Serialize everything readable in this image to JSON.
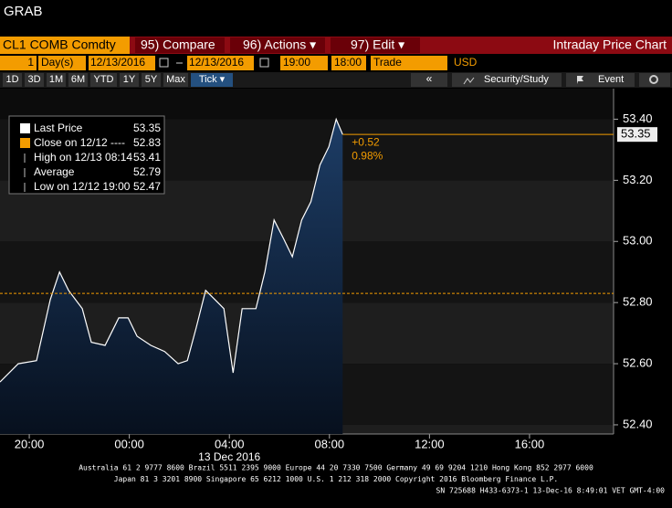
{
  "header": {
    "title": "GRAB"
  },
  "toolbar": {
    "security": "CL1 COMB Comdty",
    "compare": "95) Compare",
    "actions": "96) Actions ▾",
    "edit": "97) Edit ▾",
    "view": "Intraday Price Chart"
  },
  "range": {
    "count": "1",
    "unit": "Day(s)",
    "start_date": "12/13/2016",
    "end_date": "12/13/2016",
    "start_time": "19:00",
    "end_time": "18:00",
    "field": "Trade",
    "currency": "USD"
  },
  "periods": [
    "1D",
    "3D",
    "1M",
    "6M",
    "YTD",
    "1Y",
    "5Y",
    "Max",
    "Tick ▾"
  ],
  "tools": {
    "back": "«",
    "study": "Security/Study",
    "event": "Event"
  },
  "chart_data": {
    "type": "line",
    "color": "#ffffff",
    "area_color": "#1d3d66",
    "x": [
      18.83,
      19.56,
      20.29,
      20.84,
      21.21,
      21.57,
      22.12,
      22.48,
      23.03,
      23.58,
      23.95,
      24.31,
      24.86,
      25.41,
      25.95,
      26.32,
      26.68,
      27.05,
      27.42,
      27.78,
      28.15,
      28.51,
      29.06,
      29.42,
      29.79,
      30.16,
      30.52,
      30.89,
      31.26,
      31.62,
      31.98,
      32.27,
      32.53
    ],
    "values": [
      52.54,
      52.6,
      52.61,
      52.81,
      52.9,
      52.84,
      52.78,
      52.67,
      52.66,
      52.75,
      52.75,
      52.69,
      52.66,
      52.64,
      52.6,
      52.61,
      52.72,
      52.84,
      52.81,
      52.78,
      52.57,
      52.78,
      52.78,
      52.9,
      53.07,
      53.01,
      52.95,
      53.07,
      53.13,
      53.25,
      53.31,
      53.4,
      53.35
    ],
    "xlim": [
      18.83,
      43.36
    ],
    "xticks": [
      {
        "value": 20,
        "label": "20:00"
      },
      {
        "value": 24,
        "label": "00:00"
      },
      {
        "value": 28,
        "label": "04:00"
      },
      {
        "value": 32,
        "label": "08:00"
      },
      {
        "value": 36,
        "label": "12:00"
      },
      {
        "value": 40,
        "label": "16:00"
      }
    ],
    "ylim": [
      52.37,
      53.5
    ],
    "yticks": [
      {
        "value": 52.4,
        "label": "52.40"
      },
      {
        "value": 52.6,
        "label": "52.60"
      },
      {
        "value": 52.8,
        "label": "52.80"
      },
      {
        "value": 53,
        "label": "53.00"
      },
      {
        "value": 53.2,
        "label": "53.20"
      },
      {
        "value": 53.4,
        "label": "53.40"
      }
    ],
    "date_label": "13 Dec 2016",
    "legend": [
      {
        "name": "Last Price",
        "value": 53.35,
        "color": "#ffffff"
      },
      {
        "name": "Close on 12/12 ----",
        "value": 52.83,
        "color": "#f39c00"
      },
      {
        "name": "High on 12/13 08:14",
        "value": 53.41
      },
      {
        "name": "Average",
        "value": 52.79
      },
      {
        "name": "Low on 12/12 19:00",
        "value": 52.47
      }
    ],
    "change": "+0.52",
    "change_pct": "0.98%"
  },
  "footer": [
    "Australia 61 2 9777 8600 Brazil 5511 2395 9000 Europe 44 20 7330 7500 Germany 49 69 9204 1210 Hong Kong 852 2977 6000",
    "Japan 81 3 3201 8900        Singapore 65 6212 1000        U.S. 1 212 318 2000        Copyright 2016 Bloomberg Finance L.P.",
    "SN 725688 H433-6373-1 13-Dec-16  8:49:01 VET  GMT-4:00"
  ]
}
